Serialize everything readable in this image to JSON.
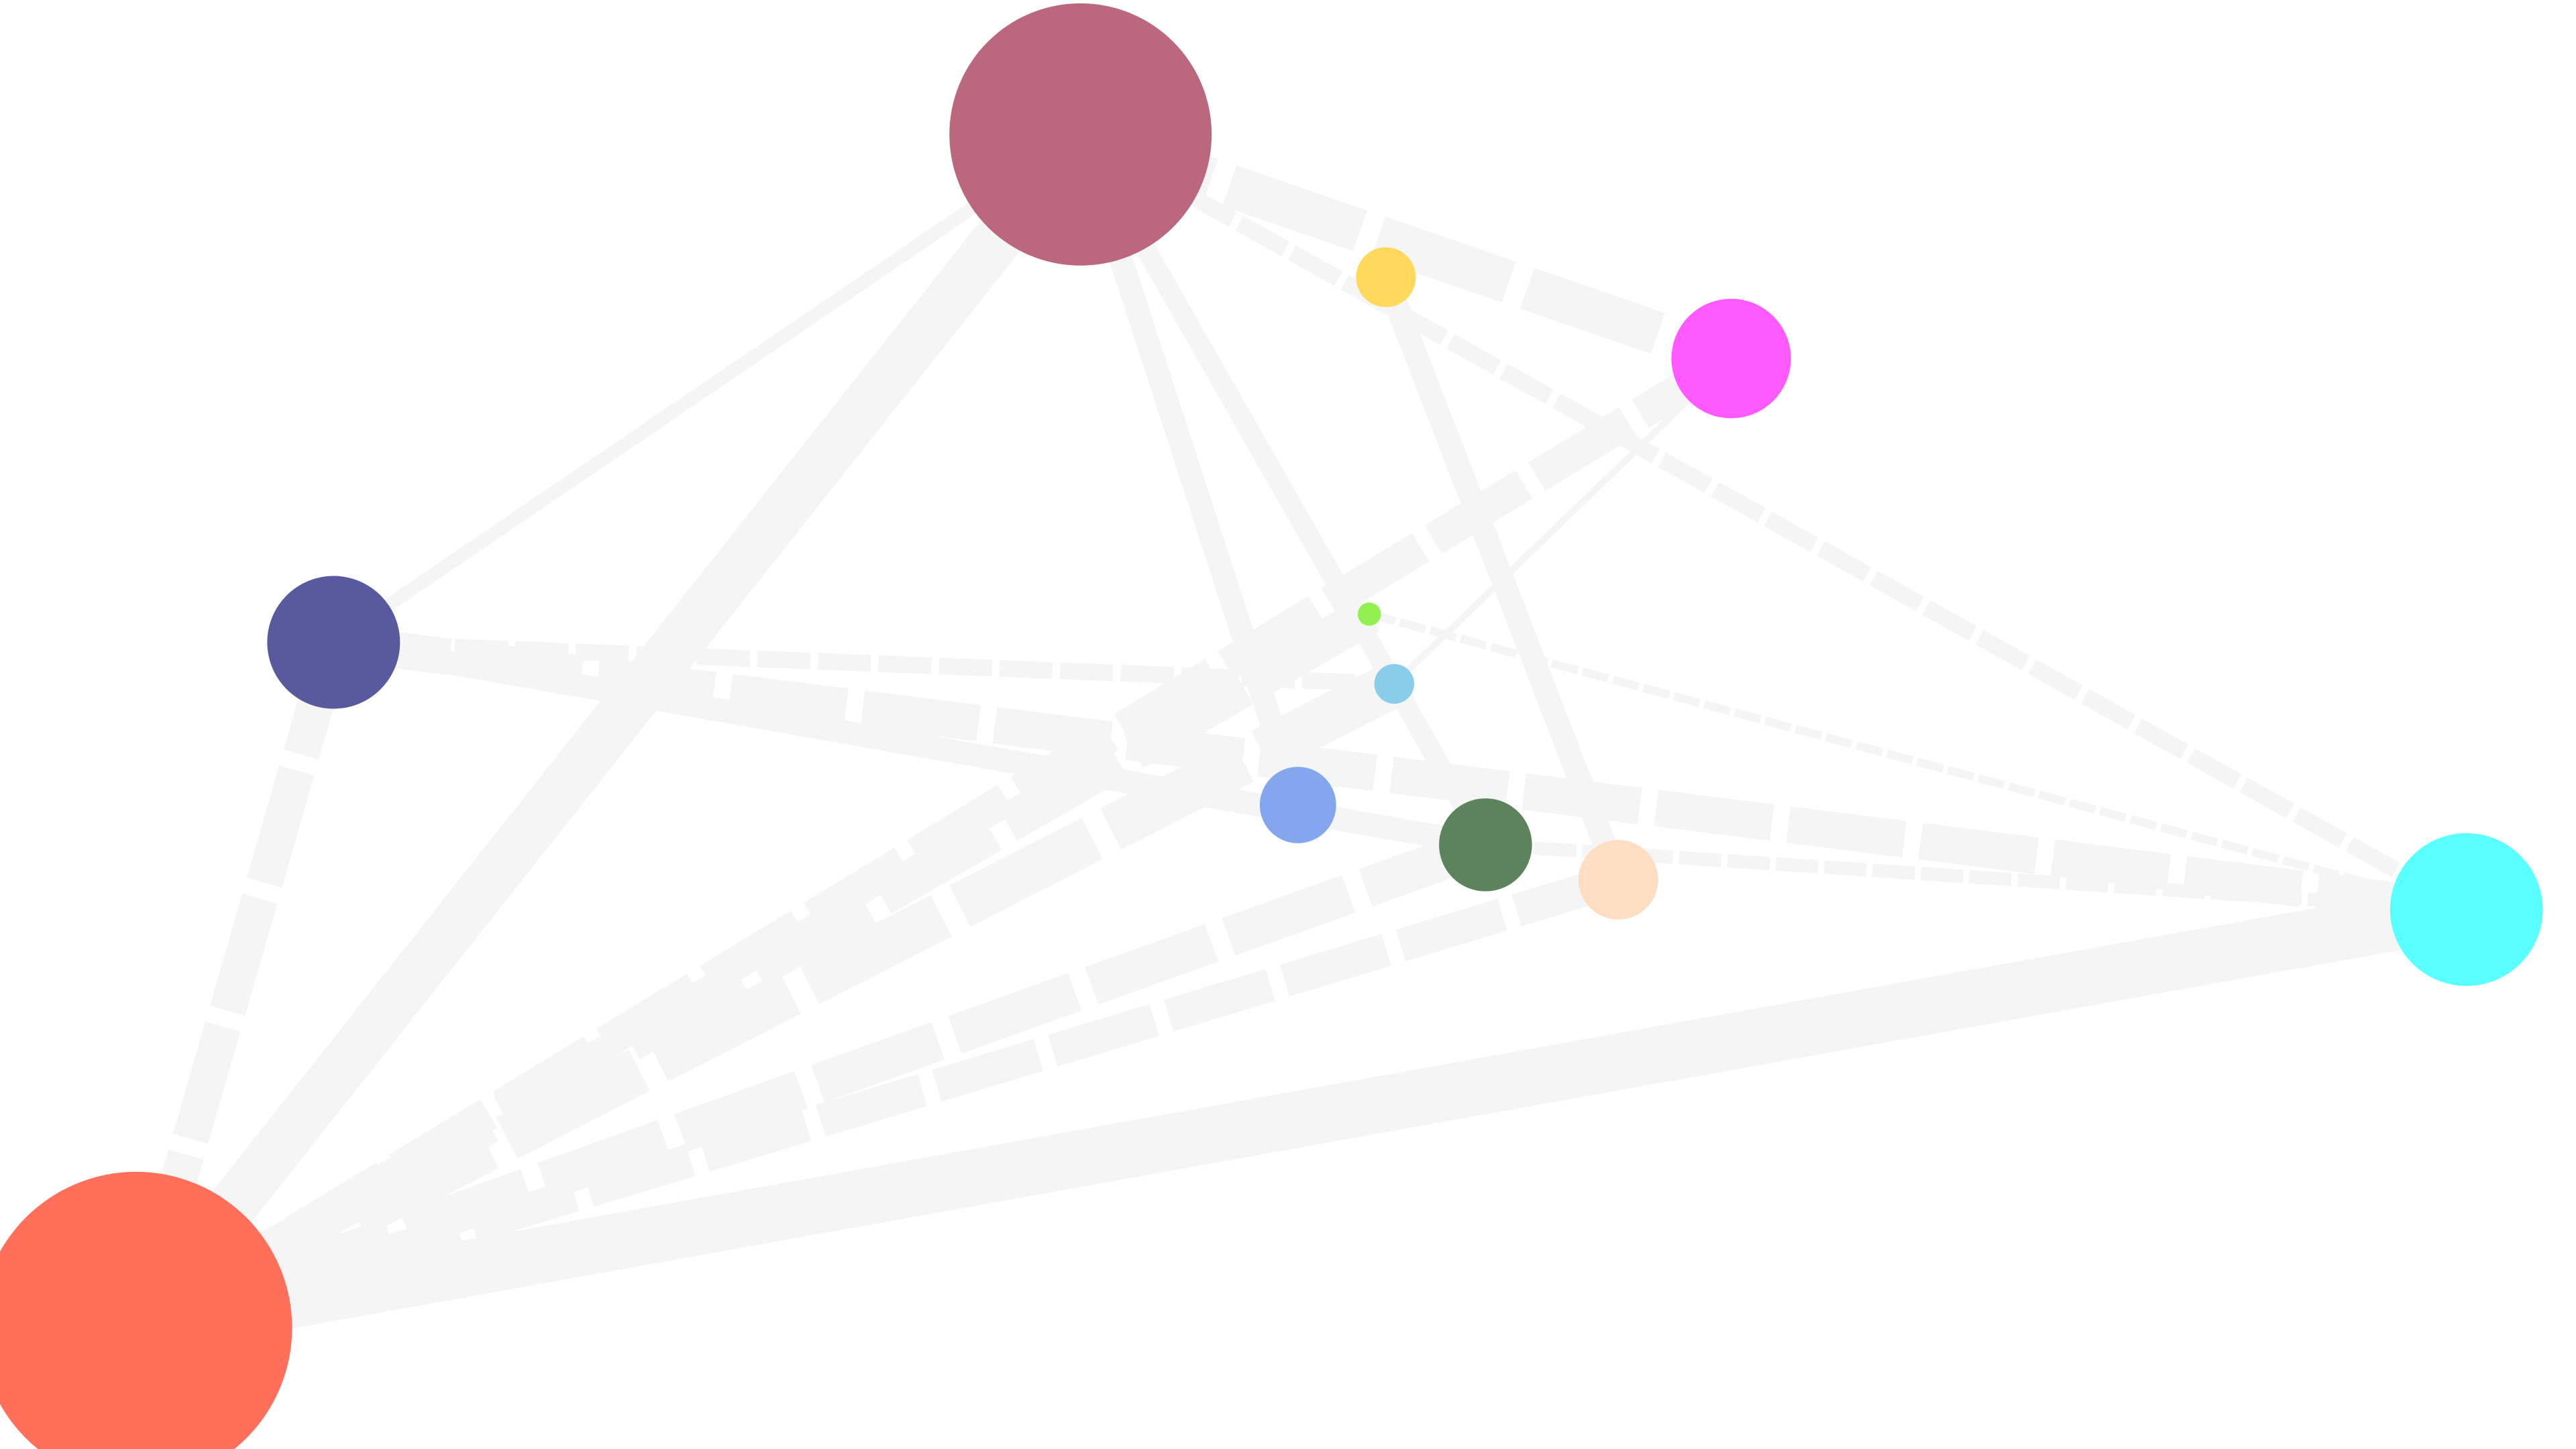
{
  "graph": {
    "edge_color": "#f5f5f5",
    "nodes": [
      {
        "id": "crimson",
        "color": "#b9627a"
      },
      {
        "id": "magenta",
        "color": "#ff55ff"
      },
      {
        "id": "gold",
        "color": "#ffd856"
      },
      {
        "id": "navy",
        "color": "#54559b"
      },
      {
        "id": "lime",
        "color": "#8ef04a"
      },
      {
        "id": "skyblue",
        "color": "#86cbea"
      },
      {
        "id": "cornflower",
        "color": "#7fa3ee"
      },
      {
        "id": "forest",
        "color": "#577f57"
      },
      {
        "id": "peach",
        "color": "#fdddc0"
      },
      {
        "id": "cyan",
        "color": "#55ffff"
      },
      {
        "id": "tomato",
        "color": "#ff6a55"
      }
    ],
    "edges": [
      {
        "source": "crimson",
        "target": "tomato",
        "style": "solid"
      },
      {
        "source": "crimson",
        "target": "navy",
        "style": "solid"
      },
      {
        "source": "crimson",
        "target": "magenta",
        "style": "dashed"
      },
      {
        "source": "crimson",
        "target": "cyan",
        "style": "dashed"
      },
      {
        "source": "crimson",
        "target": "cornflower",
        "style": "solid"
      },
      {
        "source": "crimson",
        "target": "forest",
        "style": "solid"
      },
      {
        "source": "navy",
        "target": "tomato",
        "style": "dashed"
      },
      {
        "source": "navy",
        "target": "cyan",
        "style": "dashed"
      },
      {
        "source": "navy",
        "target": "forest",
        "style": "solid"
      },
      {
        "source": "navy",
        "target": "skyblue",
        "style": "dashed"
      },
      {
        "source": "gold",
        "target": "peach",
        "style": "solid"
      },
      {
        "source": "magenta",
        "target": "tomato",
        "style": "dashed"
      },
      {
        "source": "magenta",
        "target": "skyblue",
        "style": "solid"
      },
      {
        "source": "lime",
        "target": "cyan",
        "style": "dashed"
      },
      {
        "source": "lime",
        "target": "tomato",
        "style": "dashed"
      },
      {
        "source": "skyblue",
        "target": "tomato",
        "style": "dashed"
      },
      {
        "source": "forest",
        "target": "tomato",
        "style": "dashed"
      },
      {
        "source": "forest",
        "target": "cyan",
        "style": "dashed"
      },
      {
        "source": "peach",
        "target": "tomato",
        "style": "dashed"
      },
      {
        "source": "cyan",
        "target": "tomato",
        "style": "solid"
      }
    ]
  }
}
